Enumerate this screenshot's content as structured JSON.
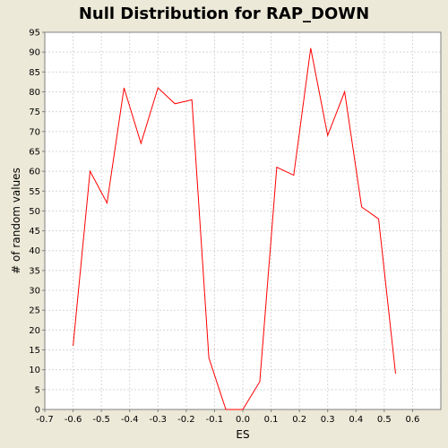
{
  "chart_data": {
    "type": "line",
    "title": "Null Distribution for RAP_DOWN",
    "xlabel": "ES",
    "ylabel": "# of random values",
    "xlim": [
      -0.7,
      0.7
    ],
    "ylim": [
      0,
      95
    ],
    "x_ticks": [
      -0.7,
      -0.6,
      -0.5,
      -0.4,
      -0.3,
      -0.2,
      -0.1,
      0.0,
      0.1,
      0.2,
      0.3,
      0.4,
      0.5,
      0.6
    ],
    "x_tick_labels": [
      "-0.7",
      "-0.6",
      "-0.5",
      "-0.4",
      "-0.3",
      "-0.2",
      "-0.1",
      "0.0",
      "0.1",
      "0.2",
      "0.3",
      "0.4",
      "0.5",
      "0.6"
    ],
    "y_ticks": [
      0,
      5,
      10,
      15,
      20,
      25,
      30,
      35,
      40,
      45,
      50,
      55,
      60,
      65,
      70,
      75,
      80,
      85,
      90,
      95
    ],
    "grid": true,
    "series": [
      {
        "color": "#ff0000",
        "points": [
          [
            -0.6,
            16
          ],
          [
            -0.54,
            60
          ],
          [
            -0.48,
            52
          ],
          [
            -0.42,
            81
          ],
          [
            -0.36,
            67
          ],
          [
            -0.3,
            81
          ],
          [
            -0.24,
            77
          ],
          [
            -0.18,
            78
          ],
          [
            -0.12,
            13
          ],
          [
            -0.06,
            0
          ],
          [
            0.0,
            0
          ],
          [
            0.06,
            7
          ],
          [
            0.12,
            61
          ],
          [
            0.18,
            59
          ],
          [
            0.24,
            91
          ],
          [
            0.3,
            69
          ],
          [
            0.36,
            80
          ],
          [
            0.42,
            51
          ],
          [
            0.48,
            48
          ],
          [
            0.54,
            9
          ]
        ]
      }
    ],
    "plot_background": "#ffffff",
    "grid_color": "#d8d8d8"
  }
}
